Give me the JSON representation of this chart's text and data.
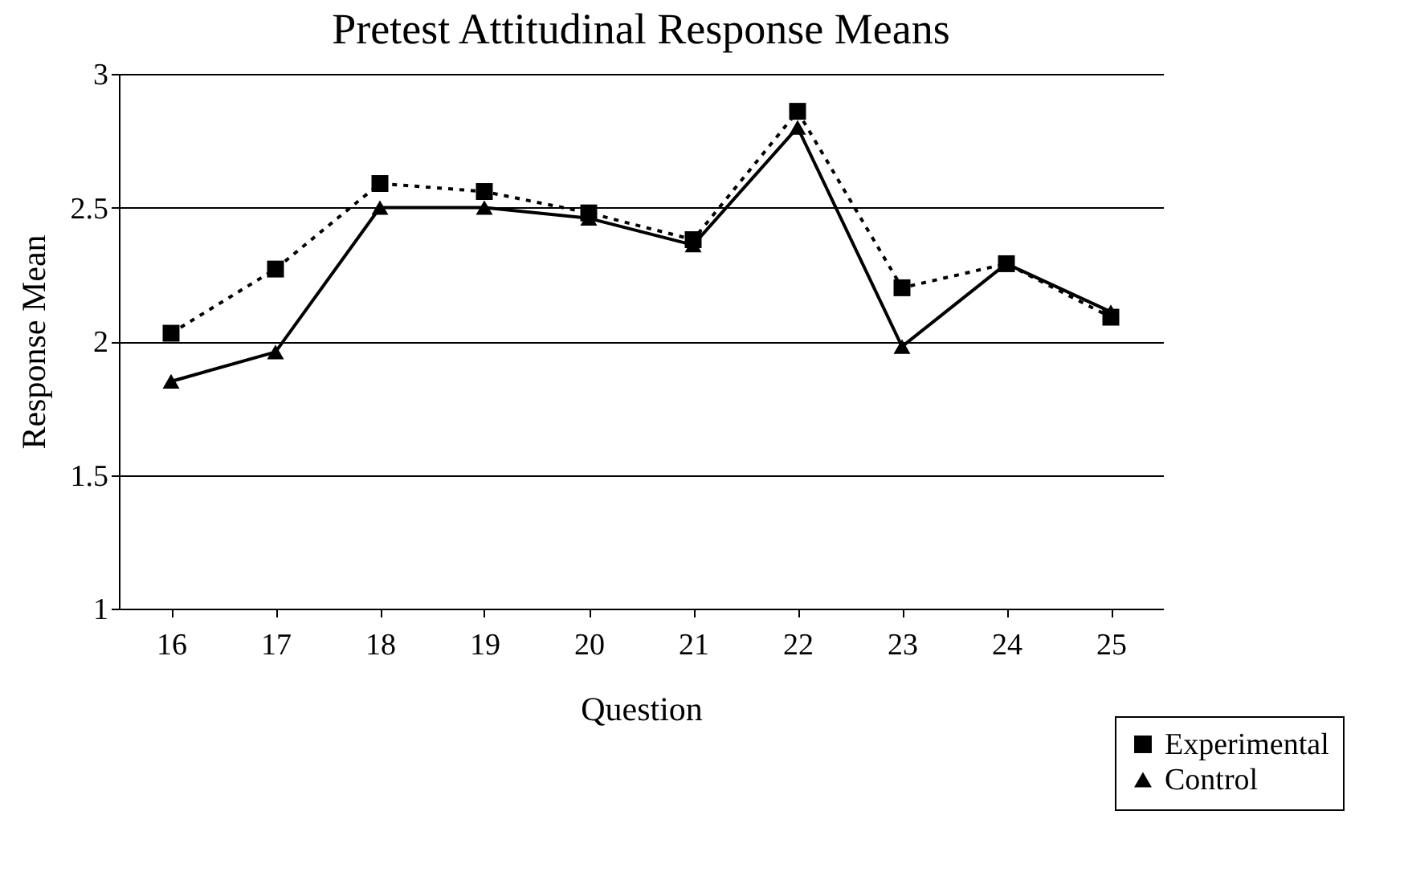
{
  "chart_data": {
    "type": "line",
    "title": "Pretest Attitudinal Response Means",
    "xlabel": "Question",
    "ylabel": "Response Mean",
    "categories": [
      "16",
      "17",
      "18",
      "19",
      "20",
      "21",
      "22",
      "23",
      "24",
      "25"
    ],
    "series": [
      {
        "name": "Experimental",
        "color": "#000000",
        "line_style": "dotted",
        "marker": "square",
        "values": [
          2.03,
          2.27,
          2.59,
          2.56,
          2.48,
          2.38,
          2.86,
          2.2,
          2.29,
          2.09
        ]
      },
      {
        "name": "Control",
        "color": "#000000",
        "line_style": "solid",
        "marker": "triangle",
        "values": [
          1.85,
          1.96,
          2.5,
          2.5,
          2.46,
          2.36,
          2.8,
          1.98,
          2.29,
          2.11
        ]
      }
    ],
    "ylim": [
      1,
      3
    ],
    "yticks": [
      1,
      1.5,
      2,
      2.5,
      3
    ],
    "grid": "y",
    "legend": "bottom right"
  }
}
